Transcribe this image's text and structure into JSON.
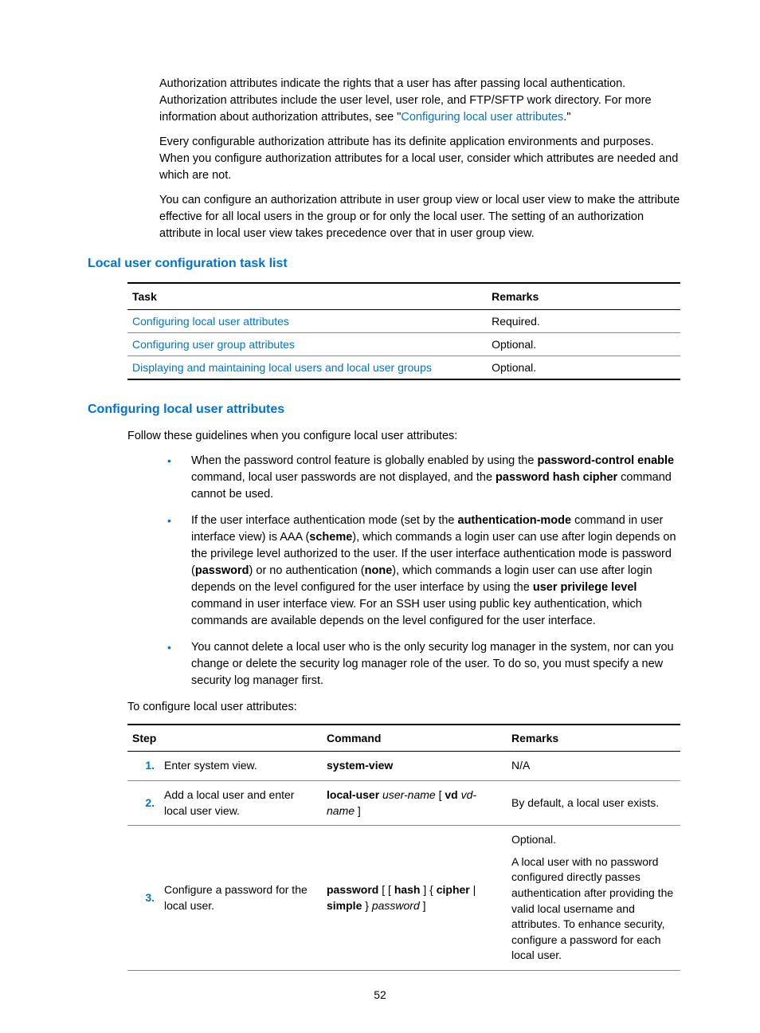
{
  "intro": {
    "p1a": "Authorization attributes indicate the rights that a user has after passing local authentication. Authorization attributes include the user level, user role, and FTP/SFTP work directory. For more information about authorization attributes, see \"",
    "p1_link": "Configuring local user attributes",
    "p1b": ".\"",
    "p2": "Every configurable authorization attribute has its definite application environments and purposes. When you configure authorization attributes for a local user, consider which attributes are needed and which are not.",
    "p3": "You can configure an authorization attribute in user group view or local user view to make the attribute effective for all local users in the group or for only the local user. The setting of an authorization attribute in local user view takes precedence over that in user group view."
  },
  "task_list": {
    "heading": "Local user configuration task list",
    "headers": {
      "task": "Task",
      "remarks": "Remarks"
    },
    "rows": [
      {
        "task": "Configuring local user attributes",
        "remarks": "Required."
      },
      {
        "task": "Configuring user group attributes",
        "remarks": "Optional."
      },
      {
        "task": "Displaying and maintaining local users and local user groups",
        "remarks": "Optional."
      }
    ],
    "col_widths": {
      "task": "65%",
      "remarks": "35%"
    }
  },
  "configuring": {
    "heading": "Configuring local user attributes",
    "intro": "Follow these guidelines when you configure local user attributes:",
    "bullets": [
      {
        "parts": [
          {
            "t": "When the password control feature is globally enabled by using the "
          },
          {
            "t": "password-control enable",
            "b": true
          },
          {
            "t": " command, local user passwords are not displayed, and the "
          },
          {
            "t": "password hash cipher",
            "b": true
          },
          {
            "t": " command cannot be used."
          }
        ]
      },
      {
        "parts": [
          {
            "t": "If the user interface authentication mode (set by the "
          },
          {
            "t": "authentication-mode",
            "b": true
          },
          {
            "t": " command in user interface view) is AAA ("
          },
          {
            "t": "scheme",
            "b": true
          },
          {
            "t": "), which commands a login user can use after login depends on the privilege level authorized to the user. If the user interface authentication mode is password ("
          },
          {
            "t": "password",
            "b": true
          },
          {
            "t": ") or no authentication ("
          },
          {
            "t": "none",
            "b": true
          },
          {
            "t": "), which commands a login user can use after login depends on the level configured for the user interface by using the "
          },
          {
            "t": "user privilege level",
            "b": true
          },
          {
            "t": " command in user interface view. For an SSH user using public key authentication, which commands are available depends on the level configured for the user interface."
          }
        ]
      },
      {
        "parts": [
          {
            "t": "You cannot delete a local user who is the only security log manager in the system, nor can you change or delete the security log manager role of the user. To do so, you must specify a new security log manager first."
          }
        ]
      }
    ],
    "outro": "To configure local user attributes:"
  },
  "steps": {
    "headers": {
      "step": "Step",
      "command": "Command",
      "remarks": "Remarks"
    },
    "col_widths": {
      "num": "28px",
      "desc": "192px",
      "command": "220px",
      "remarks": "auto"
    },
    "rows": [
      {
        "num": "1.",
        "desc": "Enter system view.",
        "command_parts": [
          {
            "t": "system-view",
            "b": true
          }
        ],
        "remarks_parts": [
          {
            "t": "N/A"
          }
        ]
      },
      {
        "num": "2.",
        "desc": "Add a local user and enter local user view.",
        "command_parts": [
          {
            "t": "local-user",
            "b": true
          },
          {
            "t": " "
          },
          {
            "t": "user-name",
            "i": true
          },
          {
            "t": " [ "
          },
          {
            "t": "vd",
            "b": true
          },
          {
            "t": " "
          },
          {
            "t": "vd-name",
            "i": true
          },
          {
            "t": " ]"
          }
        ],
        "remarks_parts": [
          {
            "t": "By default, a local user exists."
          }
        ]
      },
      {
        "num": "3.",
        "desc": "Configure a password for the local user.",
        "command_parts": [
          {
            "t": "password",
            "b": true
          },
          {
            "t": " [ [ "
          },
          {
            "t": "hash",
            "b": true
          },
          {
            "t": " ] { "
          },
          {
            "t": "cipher",
            "b": true
          },
          {
            "t": " | "
          },
          {
            "t": "simple",
            "b": true
          },
          {
            "t": " } "
          },
          {
            "t": "password",
            "i": true
          },
          {
            "t": " ]"
          }
        ],
        "remarks_parts": [
          {
            "t": "Optional."
          },
          {
            "br": true
          },
          {
            "t": "A local user with no password configured directly passes authentication after providing the valid local username and attributes. To enhance security, configure a password for each local user."
          }
        ]
      }
    ]
  },
  "page_number": "52"
}
